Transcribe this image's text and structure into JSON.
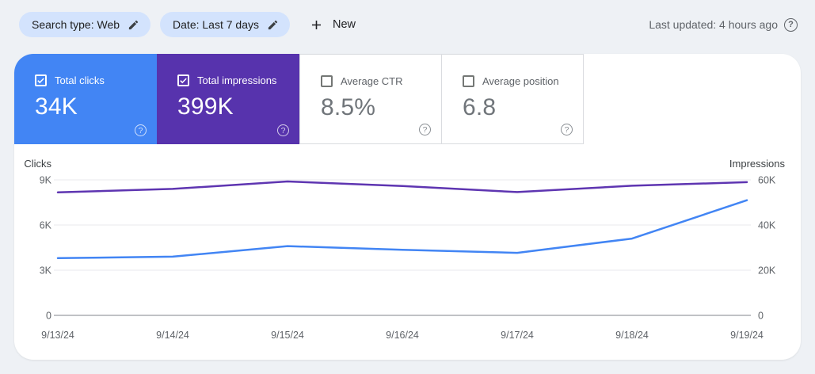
{
  "topbar": {
    "chips": [
      {
        "label": "Search type: Web"
      },
      {
        "label": "Date: Last 7 days"
      }
    ],
    "new_button_label": "New",
    "last_updated": "Last updated: 4 hours ago"
  },
  "icons": {
    "help_glyph": "?"
  },
  "cards": [
    {
      "label": "Total clicks",
      "value": "34K",
      "checked": true,
      "bg": "#4285f4"
    },
    {
      "label": "Total impressions",
      "value": "399K",
      "checked": true,
      "bg": "#5733ad"
    },
    {
      "label": "Average CTR",
      "value": "8.5%",
      "checked": false,
      "bg": null
    },
    {
      "label": "Average position",
      "value": "6.8",
      "checked": false,
      "bg": null
    }
  ],
  "chart_data": {
    "type": "line",
    "x": [
      "9/13/24",
      "9/14/24",
      "9/15/24",
      "9/16/24",
      "9/17/24",
      "9/18/24",
      "9/19/24"
    ],
    "series": [
      {
        "name": "Clicks",
        "axis": "left",
        "color": "#4285f4",
        "values": [
          3800,
          3900,
          4600,
          4350,
          4150,
          5100,
          7650
        ]
      },
      {
        "name": "Impressions",
        "axis": "right",
        "color": "#5e35b1",
        "values": [
          54500,
          56000,
          59300,
          57300,
          54600,
          57400,
          59000
        ]
      }
    ],
    "left_axis": {
      "title": "Clicks",
      "max": 9000,
      "ticks": [
        {
          "v": 0,
          "label": "0"
        },
        {
          "v": 3000,
          "label": "3K"
        },
        {
          "v": 6000,
          "label": "6K"
        },
        {
          "v": 9000,
          "label": "9K"
        }
      ]
    },
    "right_axis": {
      "title": "Impressions",
      "max": 60000,
      "ticks": [
        {
          "v": 0,
          "label": "0"
        },
        {
          "v": 20000,
          "label": "20K"
        },
        {
          "v": 40000,
          "label": "40K"
        },
        {
          "v": 60000,
          "label": "60K"
        }
      ]
    },
    "grid": {
      "line_color": "#e8eaed",
      "zero_line_color": "#80868b",
      "legend": "none"
    }
  }
}
